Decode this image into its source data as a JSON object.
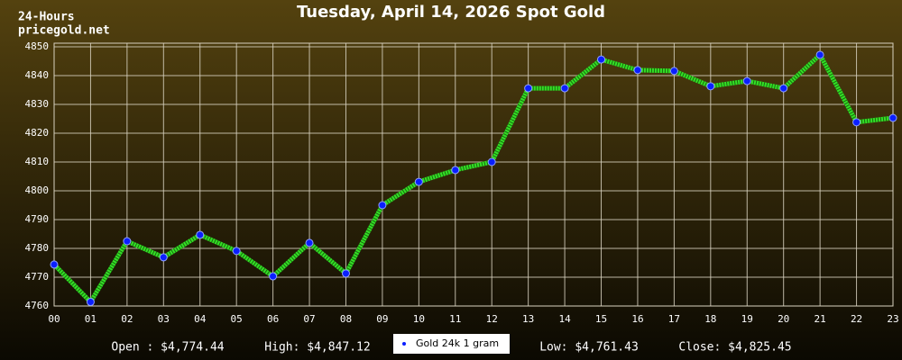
{
  "chart_data": {
    "type": "line",
    "title": "Tuesday, April 14, 2026 Spot Gold",
    "subtitle": [
      "24-Hours",
      "pricegold.net"
    ],
    "categories": [
      "00",
      "01",
      "02",
      "03",
      "04",
      "05",
      "06",
      "07",
      "08",
      "09",
      "10",
      "11",
      "12",
      "13",
      "14",
      "15",
      "16",
      "17",
      "18",
      "19",
      "20",
      "21",
      "22",
      "23"
    ],
    "series": [
      {
        "name": "Gold 24k 1 gram",
        "color": "#33e025",
        "marker_color": "#0a1fff",
        "values": [
          4774.4,
          4761.4,
          4782.5,
          4776.9,
          4784.7,
          4779.1,
          4770.3,
          4781.9,
          4771.3,
          4795.0,
          4803.1,
          4807.2,
          4810.0,
          4835.6,
          4835.6,
          4845.6,
          4841.9,
          4841.6,
          4836.3,
          4838.1,
          4835.6,
          4847.2,
          4823.8,
          4825.3
        ]
      }
    ],
    "ylim": [
      4760,
      4850
    ],
    "yticks": [
      4760,
      4770,
      4780,
      4790,
      4800,
      4810,
      4820,
      4830,
      4840,
      4850
    ],
    "grid": true,
    "stats": [
      "Open : $4,774.44",
      "High: $4,847.12",
      "Low: $4,761.43",
      "Close: $4,825.45"
    ]
  }
}
